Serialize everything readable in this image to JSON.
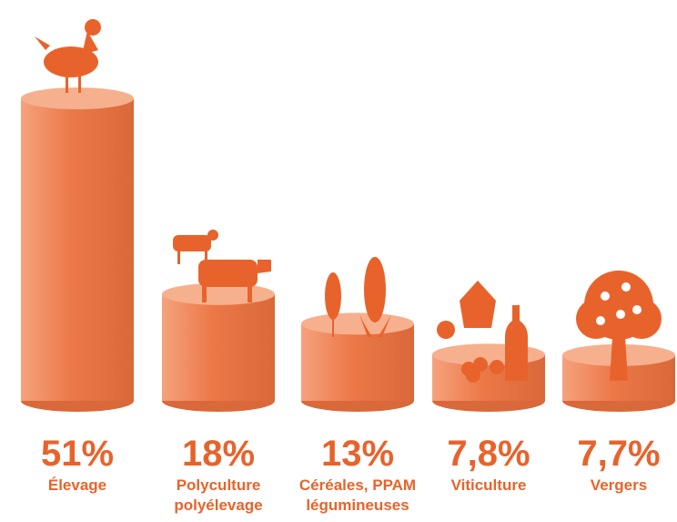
{
  "chart_data": {
    "type": "bar",
    "categories": [
      "Élevage",
      "Polyculture polyélevage",
      "Céréales, PPAM légumineuses",
      "Viticulture",
      "Vergers"
    ],
    "values": [
      51,
      18,
      13,
      7.8,
      7.7
    ],
    "value_labels": [
      "51%",
      "18%",
      "13%",
      "7,8%",
      "7,7%"
    ],
    "color": "#ec7848"
  }
}
